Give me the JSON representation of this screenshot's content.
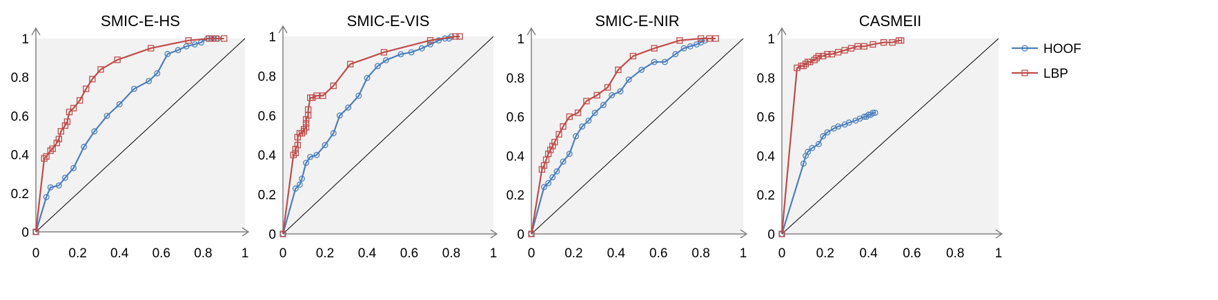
{
  "chart_data": [
    {
      "type": "line",
      "title": "SMIC-E-HS",
      "xlim": [
        0,
        1
      ],
      "ylim": [
        0,
        1
      ],
      "xticks": [
        "0",
        "0.2",
        "0.4",
        "0.6",
        "0.8",
        "1"
      ],
      "yticks": [
        "0",
        "0.2",
        "0.4",
        "0.6",
        "0.8",
        "1"
      ],
      "grid": false,
      "diagonal": true,
      "series": [
        {
          "name": "HOOF",
          "color": "#4a7ebb",
          "marker": "circle",
          "x": [
            0,
            0.05,
            0.07,
            0.11,
            0.14,
            0.18,
            0.23,
            0.28,
            0.34,
            0.4,
            0.47,
            0.54,
            0.58,
            0.63,
            0.68,
            0.72,
            0.76,
            0.79,
            0.82,
            0.84,
            0.85,
            0.87
          ],
          "y": [
            0,
            0.18,
            0.23,
            0.24,
            0.28,
            0.33,
            0.44,
            0.52,
            0.6,
            0.66,
            0.74,
            0.78,
            0.82,
            0.92,
            0.94,
            0.96,
            0.97,
            0.98,
            1.0,
            1.0,
            1.0,
            1.0
          ]
        },
        {
          "name": "LBP",
          "color": "#be4b48",
          "marker": "square",
          "x": [
            0,
            0.04,
            0.05,
            0.07,
            0.08,
            0.1,
            0.11,
            0.12,
            0.14,
            0.15,
            0.16,
            0.18,
            0.21,
            0.24,
            0.27,
            0.31,
            0.39,
            0.55,
            0.73,
            0.83,
            0.86,
            0.9
          ],
          "y": [
            0,
            0.38,
            0.39,
            0.42,
            0.43,
            0.46,
            0.48,
            0.52,
            0.55,
            0.57,
            0.62,
            0.64,
            0.68,
            0.74,
            0.79,
            0.84,
            0.89,
            0.95,
            0.99,
            1.0,
            1.0,
            1.0
          ]
        }
      ]
    },
    {
      "type": "line",
      "title": "SMIC-E-VIS",
      "xlim": [
        0,
        1
      ],
      "ylim": [
        0,
        1
      ],
      "xticks": [
        "0",
        "0.2",
        "0.4",
        "0.6",
        "0.8",
        "1"
      ],
      "yticks": [
        "0",
        "0.2",
        "0.4",
        "0.6",
        "0.8",
        "1"
      ],
      "grid": false,
      "diagonal": true,
      "series": [
        {
          "name": "HOOF",
          "color": "#4a7ebb",
          "marker": "circle",
          "x": [
            0,
            0.06,
            0.08,
            0.09,
            0.11,
            0.13,
            0.16,
            0.2,
            0.24,
            0.27,
            0.31,
            0.36,
            0.4,
            0.45,
            0.49,
            0.56,
            0.61,
            0.66,
            0.7,
            0.74,
            0.77,
            0.79,
            0.8
          ],
          "y": [
            0,
            0.23,
            0.25,
            0.28,
            0.36,
            0.39,
            0.4,
            0.45,
            0.51,
            0.6,
            0.64,
            0.7,
            0.79,
            0.85,
            0.88,
            0.91,
            0.92,
            0.94,
            0.96,
            0.98,
            0.99,
            0.99,
            1.0
          ]
        },
        {
          "name": "LBP",
          "color": "#be4b48",
          "marker": "square",
          "x": [
            0,
            0.05,
            0.06,
            0.06,
            0.07,
            0.07,
            0.08,
            0.09,
            0.1,
            0.1,
            0.11,
            0.11,
            0.11,
            0.12,
            0.12,
            0.13,
            0.14,
            0.16,
            0.19,
            0.24,
            0.32,
            0.48,
            0.7,
            0.82,
            0.84
          ],
          "y": [
            0,
            0.4,
            0.41,
            0.43,
            0.45,
            0.49,
            0.51,
            0.51,
            0.52,
            0.53,
            0.54,
            0.56,
            0.58,
            0.6,
            0.63,
            0.69,
            0.69,
            0.7,
            0.7,
            0.75,
            0.86,
            0.92,
            0.98,
            1.0,
            1.0
          ]
        }
      ]
    },
    {
      "type": "line",
      "title": "SMIC-E-NIR",
      "xlim": [
        0,
        1
      ],
      "ylim": [
        0,
        1
      ],
      "xticks": [
        "0",
        "0.2",
        "0.4",
        "0.6",
        "0.8",
        "1"
      ],
      "yticks": [
        "0",
        "0.2",
        "0.4",
        "0.6",
        "0.8",
        "1"
      ],
      "grid": false,
      "diagonal": true,
      "series": [
        {
          "name": "HOOF",
          "color": "#4a7ebb",
          "marker": "circle",
          "x": [
            0,
            0.06,
            0.08,
            0.1,
            0.12,
            0.15,
            0.18,
            0.21,
            0.24,
            0.27,
            0.3,
            0.34,
            0.38,
            0.42,
            0.46,
            0.52,
            0.58,
            0.63,
            0.68,
            0.72,
            0.75,
            0.78,
            0.8,
            0.82
          ],
          "y": [
            0,
            0.24,
            0.26,
            0.29,
            0.32,
            0.37,
            0.41,
            0.5,
            0.55,
            0.58,
            0.62,
            0.66,
            0.71,
            0.73,
            0.79,
            0.84,
            0.88,
            0.88,
            0.92,
            0.95,
            0.96,
            0.97,
            0.98,
            0.99
          ]
        },
        {
          "name": "LBP",
          "color": "#be4b48",
          "marker": "square",
          "x": [
            0,
            0.05,
            0.06,
            0.07,
            0.08,
            0.09,
            0.1,
            0.11,
            0.13,
            0.15,
            0.18,
            0.22,
            0.26,
            0.31,
            0.36,
            0.41,
            0.48,
            0.58,
            0.7,
            0.8,
            0.84,
            0.87
          ],
          "y": [
            0,
            0.33,
            0.35,
            0.38,
            0.41,
            0.43,
            0.45,
            0.47,
            0.51,
            0.55,
            0.6,
            0.62,
            0.68,
            0.71,
            0.75,
            0.84,
            0.91,
            0.95,
            0.99,
            1.0,
            1.0,
            1.0
          ]
        }
      ]
    },
    {
      "type": "line",
      "title": "CASMEII",
      "xlim": [
        0,
        1
      ],
      "ylim": [
        0,
        1
      ],
      "xticks": [
        "0",
        "0.2",
        "0.4",
        "0.6",
        "0.8",
        "1"
      ],
      "yticks": [
        "0",
        "0.2",
        "0.4",
        "0.6",
        "0.8",
        "1"
      ],
      "grid": false,
      "diagonal": true,
      "series": [
        {
          "name": "HOOF",
          "color": "#4a7ebb",
          "marker": "circle",
          "x": [
            0,
            0.1,
            0.11,
            0.12,
            0.14,
            0.17,
            0.19,
            0.21,
            0.24,
            0.26,
            0.29,
            0.31,
            0.34,
            0.36,
            0.38,
            0.39,
            0.4,
            0.41,
            0.42,
            0.43
          ],
          "y": [
            0,
            0.36,
            0.4,
            0.42,
            0.44,
            0.46,
            0.5,
            0.52,
            0.54,
            0.55,
            0.56,
            0.57,
            0.58,
            0.59,
            0.6,
            0.6,
            0.61,
            0.61,
            0.62,
            0.62
          ]
        },
        {
          "name": "LBP",
          "color": "#be4b48",
          "marker": "square",
          "x": [
            0,
            0.07,
            0.09,
            0.1,
            0.11,
            0.12,
            0.13,
            0.15,
            0.16,
            0.17,
            0.19,
            0.21,
            0.23,
            0.26,
            0.29,
            0.32,
            0.35,
            0.38,
            0.42,
            0.47,
            0.51,
            0.54,
            0.55
          ],
          "y": [
            0,
            0.85,
            0.86,
            0.86,
            0.87,
            0.88,
            0.88,
            0.89,
            0.9,
            0.91,
            0.91,
            0.92,
            0.92,
            0.93,
            0.94,
            0.95,
            0.96,
            0.96,
            0.97,
            0.98,
            0.98,
            0.99,
            0.99
          ]
        }
      ]
    }
  ],
  "legend": {
    "position": "right",
    "items": [
      {
        "label": "HOOF",
        "color": "#4a7ebb",
        "marker": "circle"
      },
      {
        "label": "LBP",
        "color": "#be4b48",
        "marker": "square"
      }
    ]
  },
  "colors": {
    "plot_background": "#f2f2f2",
    "axis": "#808080",
    "diagonal": "#000000"
  }
}
